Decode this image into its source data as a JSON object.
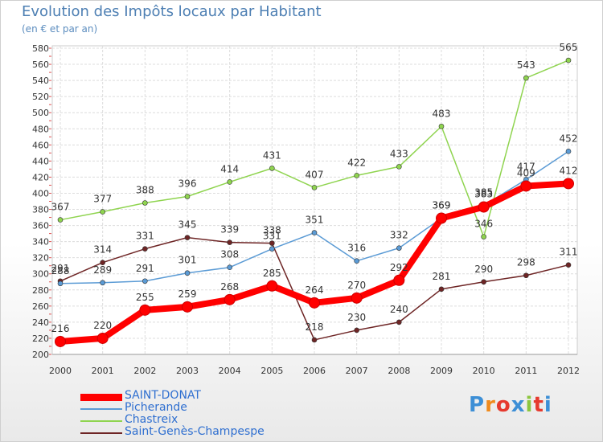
{
  "title": "Evolution des Impôts locaux par Habitant",
  "subtitle": "(en € et par an)",
  "logo": {
    "text": "Proxiti",
    "colors": [
      "#3d8fd6",
      "#f08a1c",
      "#e63a2e",
      "#3d8fd6",
      "#8cc63e",
      "#e63a2e",
      "#3d8fd6"
    ]
  },
  "chart_data": {
    "type": "line",
    "x": [
      "2000",
      "2001",
      "2002",
      "2003",
      "2004",
      "2005",
      "2006",
      "2007",
      "2008",
      "2009",
      "2010",
      "2011",
      "2012"
    ],
    "ylim": [
      200,
      580
    ],
    "yticks": [
      200,
      220,
      240,
      260,
      280,
      300,
      320,
      340,
      360,
      380,
      400,
      420,
      440,
      460,
      480,
      500,
      520,
      540,
      560,
      580
    ],
    "grid": true,
    "legend_position": "bottom-left",
    "series": [
      {
        "name": "SAINT-DONAT",
        "color": "#ff0000",
        "values": [
          216,
          220,
          255,
          259,
          268,
          285,
          264,
          270,
          292,
          369,
          383,
          409,
          412
        ]
      },
      {
        "name": "Picherande",
        "color": "#5b9bd5",
        "values": [
          288,
          289,
          291,
          301,
          308,
          331,
          351,
          316,
          332,
          369,
          385,
          417,
          452
        ]
      },
      {
        "name": "Chastreix",
        "color": "#8fd44f",
        "values": [
          367,
          377,
          388,
          396,
          414,
          431,
          407,
          422,
          433,
          483,
          346,
          543,
          565
        ]
      },
      {
        "name": "Saint-Genès-Champespe",
        "color": "#6e2525",
        "values": [
          291,
          314,
          331,
          345,
          339,
          338,
          218,
          230,
          240,
          281,
          290,
          298,
          311
        ]
      }
    ]
  }
}
